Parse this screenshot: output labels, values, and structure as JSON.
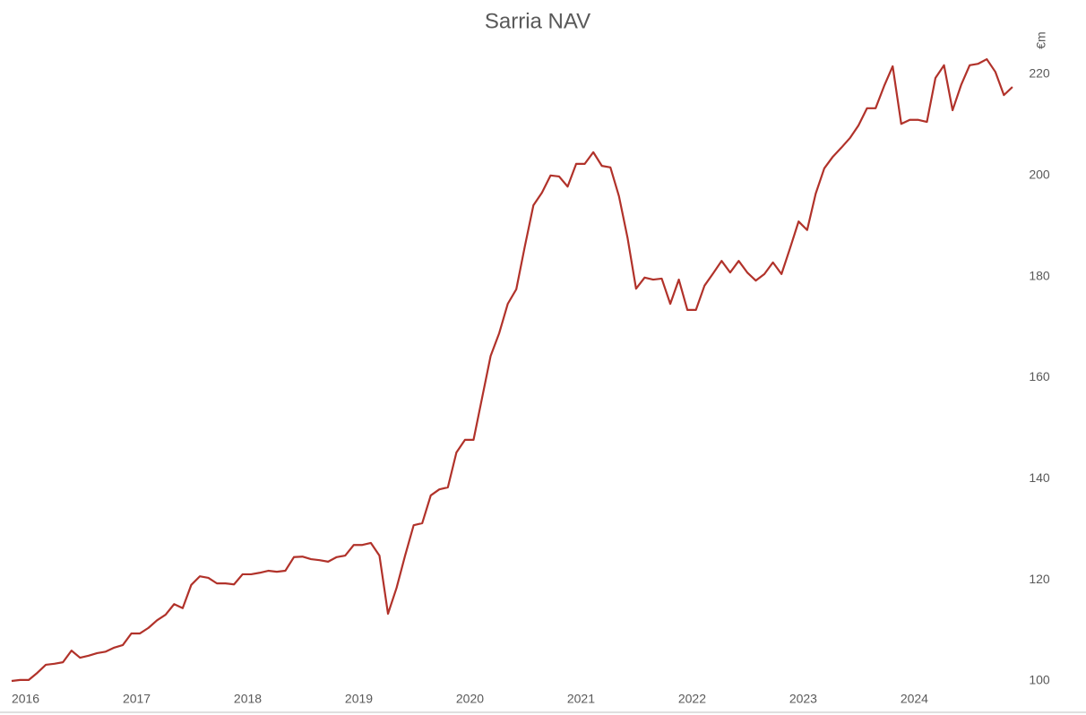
{
  "chart_data": {
    "type": "line",
    "title": "Sarria NAV",
    "y_axis_label": "€m",
    "x": [
      2016,
      2016.077,
      2016.154,
      2016.231,
      2016.308,
      2016.385,
      2016.462,
      2016.539,
      2016.616,
      2016.693,
      2016.77,
      2016.847,
      2016.924,
      2017.001,
      2017.078,
      2017.155,
      2017.232,
      2017.309,
      2017.386,
      2017.463,
      2017.54,
      2017.617,
      2017.694,
      2017.771,
      2017.848,
      2017.925,
      2018.002,
      2018.079,
      2018.156,
      2018.233,
      2018.31,
      2018.387,
      2018.464,
      2018.541,
      2018.618,
      2018.695,
      2018.772,
      2018.849,
      2018.926,
      2019.003,
      2019.08,
      2019.157,
      2019.234,
      2019.311,
      2019.388,
      2019.465,
      2019.542,
      2019.619,
      2019.696,
      2019.773,
      2019.85,
      2019.927,
      2020.004,
      2020.081,
      2020.158,
      2020.235,
      2020.312,
      2020.389,
      2020.466,
      2020.543,
      2020.62,
      2020.697,
      2020.774,
      2020.851,
      2020.928,
      2021.005,
      2021.082,
      2021.159,
      2021.236,
      2021.313,
      2021.39,
      2021.467,
      2021.544,
      2021.621,
      2021.698,
      2021.775,
      2021.852,
      2021.929,
      2022.006,
      2022.083,
      2022.16,
      2022.237,
      2022.314,
      2022.391,
      2022.468,
      2022.545,
      2022.622,
      2022.699,
      2022.776,
      2022.853,
      2022.93,
      2023.007,
      2023.084,
      2023.161,
      2023.238,
      2023.315,
      2023.392,
      2023.469,
      2023.546,
      2023.623,
      2023.7,
      2023.777,
      2023.854,
      2023.931,
      2024.008,
      2024.085,
      2024.162,
      2024.239,
      2024.316,
      2024.393,
      2024.47,
      2024.547,
      2024.624,
      2024.701,
      2024.778,
      2024.855,
      2024.932,
      2025.009
    ],
    "series": [
      {
        "name": "Sarria NAV",
        "color": "#b1322a",
        "values": [
          100,
          100.2,
          100.2,
          101.6,
          103.2,
          103.4,
          103.7,
          106,
          104.6,
          105,
          105.5,
          105.8,
          106.6,
          107.1,
          109.4,
          109.4,
          110.5,
          112,
          113.1,
          115.2,
          114.4,
          119,
          120.7,
          120.4,
          119.3,
          119.3,
          119.1,
          121.1,
          121.1,
          121.4,
          121.8,
          121.6,
          121.8,
          124.5,
          124.6,
          124.1,
          123.9,
          123.6,
          124.5,
          124.8,
          126.9,
          126.9,
          127.3,
          124.8,
          113.3,
          118.4,
          124.8,
          130.8,
          131.2,
          136.7,
          137.9,
          138.3,
          145.2,
          147.7,
          147.7,
          156,
          164.3,
          168.8,
          174.6,
          177.5,
          186,
          194.1,
          196.6,
          200,
          199.8,
          197.8,
          202.3,
          202.3,
          204.6,
          201.9,
          201.6,
          195.9,
          187.7,
          177.6,
          179.8,
          179.4,
          179.6,
          174.6,
          179.4,
          173.4,
          173.4,
          178.2,
          180.6,
          183.1,
          180.8,
          183.1,
          180.8,
          179.2,
          180.5,
          182.8,
          180.5,
          185.6,
          190.9,
          189.2,
          196.4,
          201.4,
          203.7,
          205.5,
          207.4,
          209.9,
          213.3,
          213.3,
          217.7,
          221.6,
          210.2,
          211,
          211,
          210.6,
          219.3,
          221.8,
          212.9,
          217.9,
          221.8,
          222.1,
          223,
          220.5,
          215.9,
          217.5
        ]
      }
    ],
    "xlim": [
      2015.96,
      2025.05
    ],
    "xticks": [
      2016,
      2017,
      2018,
      2019,
      2020,
      2021,
      2022,
      2023,
      2024
    ],
    "ylim": [
      100,
      225
    ],
    "yticks": [
      100,
      120,
      140,
      160,
      180,
      200,
      220
    ],
    "grid": false
  }
}
